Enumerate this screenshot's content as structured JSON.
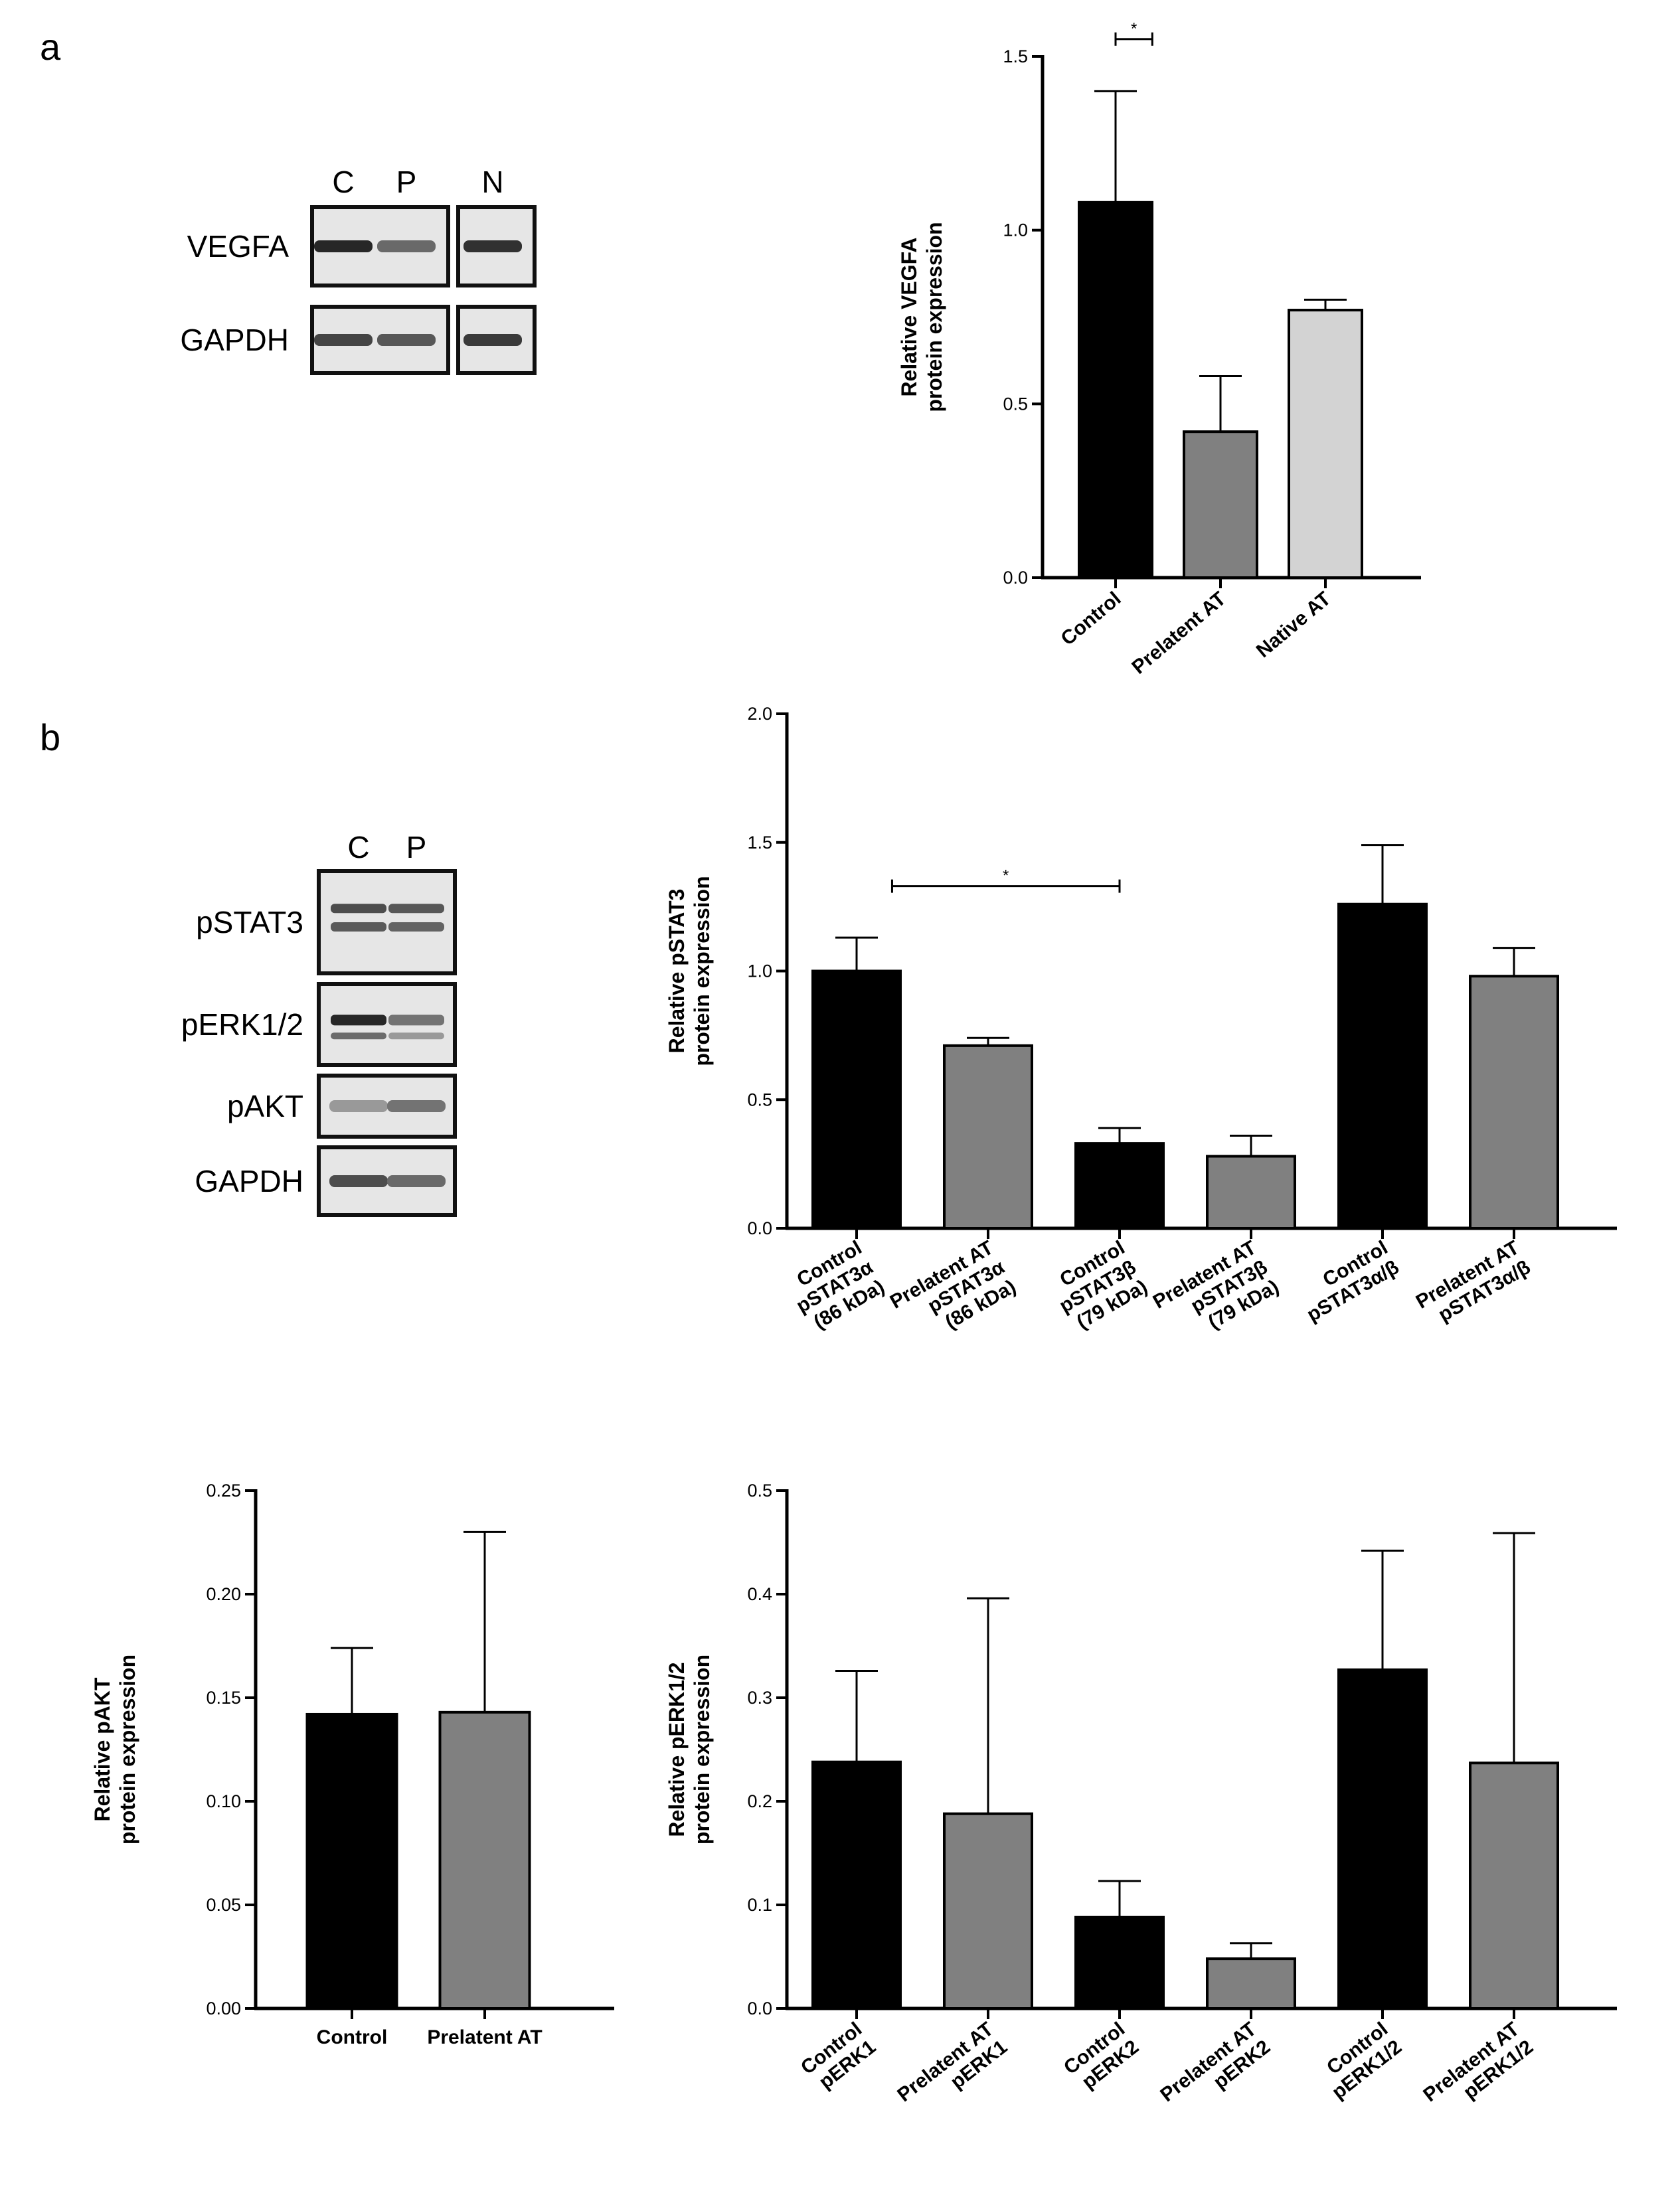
{
  "panels": {
    "a": "a",
    "b": "b"
  },
  "blots": {
    "a": {
      "lanes": [
        "C",
        "P",
        "N"
      ],
      "rows": [
        {
          "label": "VEGFA",
          "intensity": [
            0.9,
            0.55,
            0.85
          ]
        },
        {
          "label": "GAPDH",
          "intensity": [
            0.75,
            0.65,
            0.8
          ]
        }
      ]
    },
    "b": {
      "lanes": [
        "C",
        "P"
      ],
      "rows": [
        {
          "label": "pSTAT3",
          "intensity": [
            0.7,
            0.65
          ]
        },
        {
          "label": "pERK1/2",
          "intensity": [
            0.9,
            0.5
          ]
        },
        {
          "label": "pAKT",
          "intensity": [
            0.3,
            0.5
          ]
        },
        {
          "label": "GAPDH",
          "intensity": [
            0.7,
            0.55
          ]
        }
      ]
    }
  },
  "colors": {
    "control": "#000000",
    "prelatent": "#808080",
    "native": "#d3d3d3",
    "axis": "#000000"
  },
  "chart_data": [
    {
      "id": "vegfa",
      "type": "bar",
      "ylabel": [
        "Relative VEGFA",
        "protein expression"
      ],
      "ylim": [
        0,
        1.5
      ],
      "yticks": [
        "0.0",
        "0.5",
        "1.0",
        "1.5"
      ],
      "categories": [
        [
          "Control"
        ],
        [
          "Prelatent AT"
        ],
        [
          "Native AT"
        ]
      ],
      "values": [
        1.08,
        0.42,
        0.77
      ],
      "errors": [
        0.32,
        0.16,
        0.03
      ],
      "colors": [
        "control",
        "prelatent",
        "native"
      ],
      "significance": [
        {
          "from": 0,
          "to": 0.35,
          "y": 1.55,
          "label": "*"
        }
      ]
    },
    {
      "id": "pstat3",
      "type": "bar",
      "ylabel": [
        "Relative pSTAT3",
        "protein expression"
      ],
      "ylim": [
        0,
        2.0
      ],
      "yticks": [
        "0.0",
        "0.5",
        "1.0",
        "1.5",
        "2.0"
      ],
      "categories": [
        [
          "Control",
          "pSTAT3α",
          "(86 kDa)"
        ],
        [
          "Prelatent AT",
          "pSTAT3α",
          "(86 kDa)"
        ],
        [
          "Control",
          "pSTAT3β",
          "(79 kDa)"
        ],
        [
          "Prelatent AT",
          "pSTAT3β",
          "(79 kDa)"
        ],
        [
          "Control",
          "pSTAT3α/β"
        ],
        [
          "Prelatent AT",
          "pSTAT3α/β"
        ]
      ],
      "values": [
        1.0,
        0.71,
        0.33,
        0.28,
        1.26,
        0.98
      ],
      "errors": [
        0.13,
        0.03,
        0.06,
        0.08,
        0.23,
        0.11
      ],
      "colors": [
        "control",
        "prelatent",
        "control",
        "prelatent",
        "control",
        "prelatent"
      ],
      "significance": [
        {
          "from": 0.27,
          "to": 2.0,
          "y": 1.33,
          "label": "*"
        }
      ]
    },
    {
      "id": "pakt",
      "type": "bar",
      "ylabel": [
        "Relative pAKT",
        "protein expression"
      ],
      "ylim": [
        0,
        0.25
      ],
      "yticks": [
        "0.00",
        "0.05",
        "0.10",
        "0.15",
        "0.20",
        "0.25"
      ],
      "categories": [
        [
          "Control"
        ],
        [
          "Prelatent AT"
        ]
      ],
      "values": [
        0.142,
        0.143
      ],
      "errors": [
        0.032,
        0.087
      ],
      "colors": [
        "control",
        "prelatent"
      ],
      "significance": []
    },
    {
      "id": "perk",
      "type": "bar",
      "ylabel": [
        "Relative pERK1/2",
        "protein expression"
      ],
      "ylim": [
        0,
        0.5
      ],
      "yticks": [
        "0.0",
        "0.1",
        "0.2",
        "0.3",
        "0.4",
        "0.5"
      ],
      "categories": [
        [
          "Control",
          "pERK1"
        ],
        [
          "Prelatent AT",
          "pERK1"
        ],
        [
          "Control",
          "pERK2"
        ],
        [
          "Prelatent AT",
          "pERK2"
        ],
        [
          "Control",
          "pERK1/2"
        ],
        [
          "Prelatent AT",
          "pERK1/2"
        ]
      ],
      "values": [
        0.238,
        0.188,
        0.088,
        0.048,
        0.327,
        0.237
      ],
      "errors": [
        0.088,
        0.208,
        0.035,
        0.015,
        0.115,
        0.222
      ],
      "colors": [
        "control",
        "prelatent",
        "control",
        "prelatent",
        "control",
        "prelatent"
      ],
      "significance": []
    }
  ]
}
